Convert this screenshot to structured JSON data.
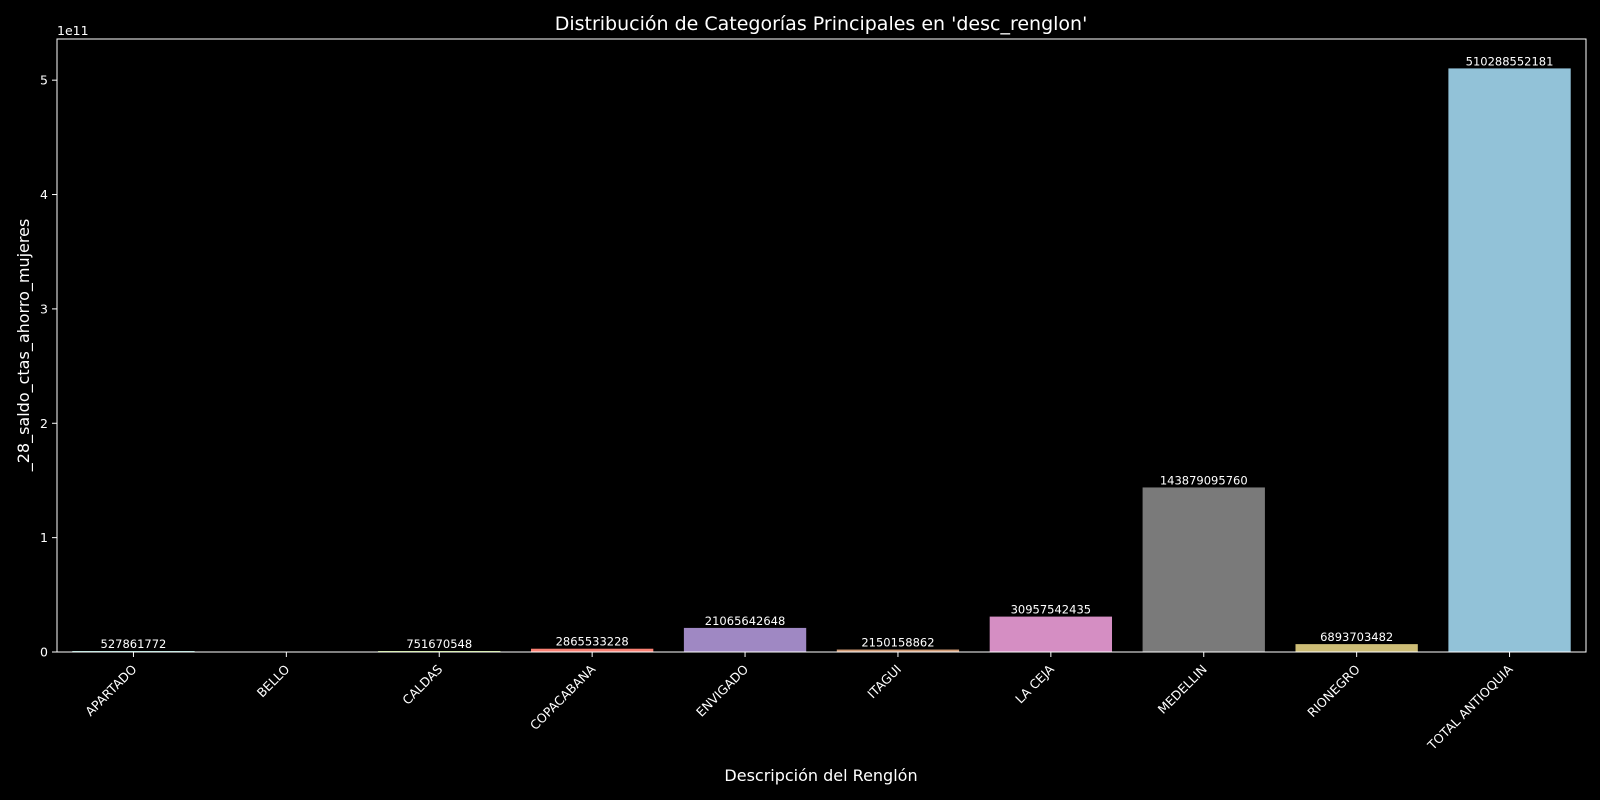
{
  "chart_data": {
    "type": "bar",
    "title": "Distribución de Categorías Principales en 'desc_renglon'",
    "xlabel": "Descripción del Renglón",
    "ylabel": "_28_saldo_ctas_ahorro_mujeres",
    "y_offset_label": "1e11",
    "categories": [
      "APARTADO",
      "BELLO",
      "CALDAS",
      "COPACABANA",
      "ENVIGADO",
      "ITAGUI",
      "LA CEJA",
      "MEDELLIN",
      "RIONEGRO",
      "TOTAL ANTIOQUIA"
    ],
    "values": [
      527861772,
      0,
      751670548,
      2865533228,
      21065642648,
      2150158862,
      30957542435,
      143879095760,
      6893703482,
      510288552181
    ],
    "data_labels": [
      "527861772",
      "",
      "751670548",
      "2865533228",
      "21065642648",
      "2150158862",
      "30957542435",
      "143879095760",
      "6893703482",
      "510288552181"
    ],
    "colors": [
      "#8dd3c7",
      "#feffb3",
      "#bfbbd9",
      "#fa8174",
      "#81b1d2",
      "#fdb462",
      "#b3de69",
      "#bc82bd",
      "#ccebc4",
      "#ffed6f"
    ],
    "bar_colors": [
      "#8dd3c7",
      "#feffb3",
      "#b3de69",
      "#fa8174",
      "#9f88c3",
      "#d19a73",
      "#d58ec3",
      "#7a7a7a",
      "#cdbd76",
      "#92c2d8"
    ],
    "yticks": [
      0,
      1,
      2,
      3,
      4,
      5
    ],
    "ytick_scale": 100000000000,
    "ylim": [
      0,
      536000000000
    ],
    "grid": false,
    "background": "#000000",
    "text_color": "#ffffff"
  }
}
